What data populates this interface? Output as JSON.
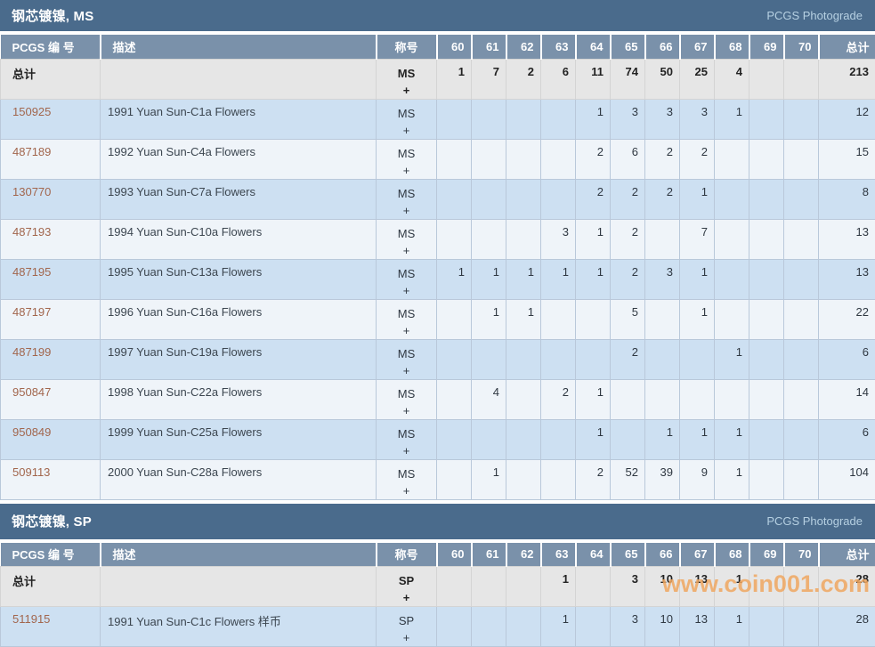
{
  "labels": {
    "pcgs_number": "PCGS 编 号",
    "description": "描述",
    "designation": "称号",
    "total": "总计",
    "totals_row_label": "总计",
    "photograde": "PCGS Photograde"
  },
  "columns": [
    "60",
    "61",
    "62",
    "63",
    "64",
    "65",
    "66",
    "67",
    "68",
    "69",
    "70"
  ],
  "colors": {
    "section_bar": "#4a6b8c",
    "table_header": "#7a91aa",
    "row_blue": "#cde0f2",
    "row_pale": "#eff4f9",
    "totals_row": "#e6e6e6",
    "pcgs_link": "#a2664d",
    "watermark": "#f0a761"
  },
  "watermark": {
    "text": "www.coin001.com"
  },
  "sections": [
    {
      "title": "钢芯镀镍, MS",
      "designation": [
        "MS",
        "+"
      ],
      "totals": {
        "grades": [
          "1",
          "7",
          "2",
          "6",
          "11",
          "74",
          "50",
          "25",
          "4",
          "",
          ""
        ],
        "total": "213"
      },
      "rows": [
        {
          "pcgs": "150925",
          "desc": "1991 Yuan Sun-C1a Flowers",
          "designation": [
            "MS",
            "+"
          ],
          "grades": [
            "",
            "",
            "",
            "",
            "1",
            "3",
            "3",
            "3",
            "1",
            "",
            ""
          ],
          "total": "12"
        },
        {
          "pcgs": "487189",
          "desc": "1992 Yuan Sun-C4a Flowers",
          "designation": [
            "MS",
            "+"
          ],
          "grades": [
            "",
            "",
            "",
            "",
            "2",
            "6",
            "2",
            "2",
            "",
            "",
            ""
          ],
          "total": "15"
        },
        {
          "pcgs": "130770",
          "desc": "1993 Yuan Sun-C7a Flowers",
          "designation": [
            "MS",
            "+"
          ],
          "grades": [
            "",
            "",
            "",
            "",
            "2",
            "2",
            "2",
            "1",
            "",
            "",
            ""
          ],
          "total": "8"
        },
        {
          "pcgs": "487193",
          "desc": "1994 Yuan Sun-C10a Flowers",
          "designation": [
            "MS",
            "+"
          ],
          "grades": [
            "",
            "",
            "",
            "3",
            "1",
            "2",
            "",
            "7",
            "",
            "",
            ""
          ],
          "total": "13"
        },
        {
          "pcgs": "487195",
          "desc": "1995 Yuan Sun-C13a Flowers",
          "designation": [
            "MS",
            "+"
          ],
          "grades": [
            "1",
            "1",
            "1",
            "1",
            "1",
            "2",
            "3",
            "1",
            "",
            "",
            ""
          ],
          "total": "13"
        },
        {
          "pcgs": "487197",
          "desc": "1996 Yuan Sun-C16a Flowers",
          "designation": [
            "MS",
            "+"
          ],
          "grades": [
            "",
            "1",
            "1",
            "",
            "",
            "5",
            "",
            "1",
            "",
            "",
            ""
          ],
          "total": "22"
        },
        {
          "pcgs": "487199",
          "desc": "1997 Yuan Sun-C19a Flowers",
          "designation": [
            "MS",
            "+"
          ],
          "grades": [
            "",
            "",
            "",
            "",
            "",
            "2",
            "",
            "",
            "1",
            "",
            ""
          ],
          "total": "6"
        },
        {
          "pcgs": "950847",
          "desc": "1998 Yuan Sun-C22a Flowers",
          "designation": [
            "MS",
            "+"
          ],
          "grades": [
            "",
            "4",
            "",
            "2",
            "1",
            "",
            "",
            "",
            "",
            "",
            ""
          ],
          "total": "14"
        },
        {
          "pcgs": "950849",
          "desc": "1999 Yuan Sun-C25a Flowers",
          "designation": [
            "MS",
            "+"
          ],
          "grades": [
            "",
            "",
            "",
            "",
            "1",
            "",
            "1",
            "1",
            "1",
            "",
            ""
          ],
          "total": "6"
        },
        {
          "pcgs": "509113",
          "desc": "2000 Yuan Sun-C28a Flowers",
          "designation": [
            "MS",
            "+"
          ],
          "grades": [
            "",
            "1",
            "",
            "",
            "2",
            "52",
            "39",
            "9",
            "1",
            "",
            ""
          ],
          "total": "104"
        }
      ]
    },
    {
      "title": "钢芯镀镍, SP",
      "designation": [
        "SP",
        "+"
      ],
      "totals": {
        "grades": [
          "",
          "",
          "",
          "1",
          "",
          "3",
          "10",
          "13",
          "1",
          "",
          ""
        ],
        "total": "28"
      },
      "rows": [
        {
          "pcgs": "511915",
          "desc": "1991 Yuan Sun-C1c Flowers 样币",
          "designation": [
            "SP",
            "+"
          ],
          "grades": [
            "",
            "",
            "",
            "1",
            "",
            "3",
            "10",
            "13",
            "1",
            "",
            ""
          ],
          "total": "28"
        }
      ]
    }
  ]
}
